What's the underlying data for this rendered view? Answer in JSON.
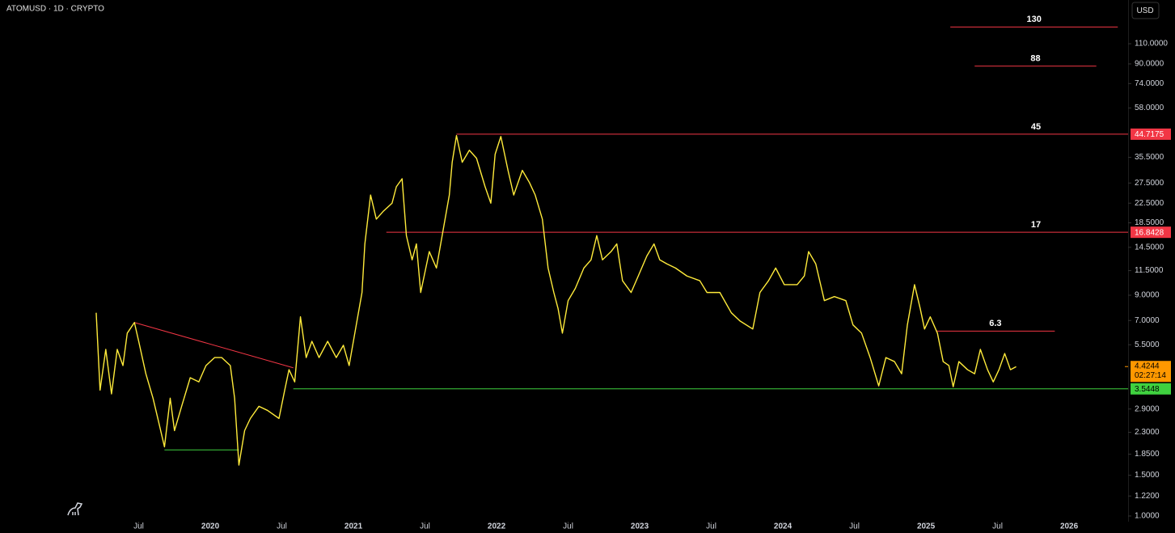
{
  "chart_data": {
    "type": "line",
    "title": "ATOMUSD · 1D · CRYPTO",
    "currency": "USD",
    "log_scale": true,
    "grid": false,
    "xlim": [
      2018.531,
      2026.412
    ],
    "ylim": [
      0.945,
      170
    ],
    "xticks": [
      {
        "value": 2019.5,
        "label": "Jul"
      },
      2020,
      {
        "value": 2020.5,
        "label": "Jul"
      },
      2021,
      {
        "value": 2021.5,
        "label": "Jul"
      },
      2022,
      {
        "value": 2022.5,
        "label": "Jul"
      },
      2023,
      {
        "value": 2023.5,
        "label": "Jul"
      },
      2024,
      {
        "value": 2024.5,
        "label": "Jul"
      },
      2025,
      {
        "value": 2025.5,
        "label": "Jul"
      },
      2026
    ],
    "yticks": [
      {
        "value": 1,
        "label": "1.0000"
      },
      {
        "value": 1.22,
        "label": "1.2200"
      },
      {
        "value": 1.5,
        "label": "1.5000"
      },
      {
        "value": 1.85,
        "label": "1.8500"
      },
      {
        "value": 2.3,
        "label": "2.3000"
      },
      {
        "value": 2.9,
        "label": "2.9000"
      },
      {
        "value": 5.5,
        "label": "5.5000"
      },
      {
        "value": 7,
        "label": "7.0000"
      },
      {
        "value": 9,
        "label": "9.0000"
      },
      {
        "value": 11.5,
        "label": "11.5000"
      },
      {
        "value": 14.5,
        "label": "14.5000"
      },
      {
        "value": 18.5,
        "label": "18.5000"
      },
      {
        "value": 22.5,
        "label": "22.5000"
      },
      {
        "value": 27.5,
        "label": "27.5000"
      },
      {
        "value": 35.5,
        "label": "35.5000"
      },
      {
        "value": 58,
        "label": "58.0000"
      },
      {
        "value": 74,
        "label": "74.0000"
      },
      {
        "value": 90,
        "label": "90.0000"
      },
      {
        "value": 110,
        "label": "110.0000"
      }
    ],
    "series": [
      {
        "name": "ATOMUSD",
        "color": "#ffeb3b",
        "x": [
          2019.203,
          2019.23,
          2019.27,
          2019.31,
          2019.35,
          2019.39,
          2019.42,
          2019.47,
          2019.5,
          2019.55,
          2019.6,
          2019.64,
          2019.68,
          2019.72,
          2019.75,
          2019.8,
          2019.86,
          2019.92,
          2019.97,
          2020.03,
          2020.08,
          2020.14,
          2020.17,
          2020.2,
          2020.24,
          2020.28,
          2020.34,
          2020.4,
          2020.48,
          2020.52,
          2020.55,
          2020.59,
          2020.63,
          2020.67,
          2020.71,
          2020.76,
          2020.82,
          2020.88,
          2020.93,
          2020.97,
          2021.02,
          2021.06,
          2021.08,
          2021.12,
          2021.16,
          2021.21,
          2021.27,
          2021.3,
          2021.34,
          2021.37,
          2021.41,
          2021.44,
          2021.47,
          2021.53,
          2021.58,
          2021.62,
          2021.67,
          2021.69,
          2021.72,
          2021.76,
          2021.81,
          2021.86,
          2021.92,
          2021.96,
          2021.99,
          2022.03,
          2022.08,
          2022.12,
          2022.18,
          2022.23,
          2022.27,
          2022.32,
          2022.36,
          2022.4,
          2022.43,
          2022.46,
          2022.5,
          2022.55,
          2022.61,
          2022.66,
          2022.7,
          2022.74,
          2022.8,
          2022.84,
          2022.88,
          2022.94,
          2022.99,
          2023.05,
          2023.1,
          2023.14,
          2023.19,
          2023.25,
          2023.33,
          2023.42,
          2023.47,
          2023.56,
          2023.64,
          2023.7,
          2023.79,
          2023.84,
          2023.9,
          2023.95,
          2024.01,
          2024.1,
          2024.15,
          2024.18,
          2024.23,
          2024.29,
          2024.36,
          2024.44,
          2024.49,
          2024.55,
          2024.61,
          2024.67,
          2024.72,
          2024.78,
          2024.83,
          2024.87,
          2024.92,
          2024.96,
          2024.99,
          2025.03,
          2025.08,
          2025.12,
          2025.16,
          2025.19,
          2025.23,
          2025.29,
          2025.34,
          2025.38,
          2025.43,
          2025.47,
          2025.51,
          2025.55,
          2025.59,
          2025.63
        ],
        "values": [
          7.56,
          3.5,
          5.25,
          3.37,
          5.25,
          4.47,
          6.17,
          6.86,
          5.69,
          4.12,
          3.23,
          2.54,
          1.99,
          3.23,
          2.34,
          2.98,
          3.96,
          3.8,
          4.47,
          4.84,
          4.84,
          4.47,
          3.23,
          1.66,
          2.34,
          2.64,
          2.98,
          2.86,
          2.64,
          3.5,
          4.29,
          3.8,
          7.26,
          4.84,
          5.69,
          4.84,
          5.69,
          4.84,
          5.47,
          4.47,
          6.7,
          9.25,
          15.0,
          24.4,
          19.2,
          20.8,
          22.5,
          26.5,
          28.7,
          16.3,
          12.8,
          15.0,
          9.25,
          13.9,
          11.8,
          16.3,
          24.4,
          33.8,
          44.1,
          33.8,
          38.1,
          35.2,
          26.5,
          22.5,
          36.6,
          43.7,
          31.2,
          24.4,
          31.2,
          27.6,
          24.4,
          19.2,
          11.8,
          9.25,
          7.87,
          6.17,
          8.53,
          9.63,
          11.8,
          12.8,
          16.3,
          12.8,
          13.9,
          15.0,
          10.4,
          9.25,
          10.9,
          13.3,
          15.0,
          12.8,
          12.3,
          11.8,
          10.9,
          10.4,
          9.25,
          9.25,
          7.56,
          6.97,
          6.43,
          9.25,
          10.4,
          11.8,
          10.0,
          10.0,
          10.9,
          13.9,
          12.3,
          8.53,
          8.88,
          8.53,
          6.7,
          6.17,
          4.84,
          3.65,
          4.84,
          4.65,
          4.12,
          6.7,
          10.0,
          7.87,
          6.43,
          7.26,
          6.17,
          4.65,
          4.47,
          3.62,
          4.65,
          4.29,
          4.12,
          5.25,
          4.29,
          3.8,
          4.29,
          5.04,
          4.29,
          4.42
        ]
      }
    ],
    "last_price": 4.4244,
    "countdown": "02:27:14",
    "last_price_color": "#ff9800",
    "levels": [
      {
        "value": 130,
        "label": "130",
        "color": "#f23645",
        "x_start": 2025.17,
        "x_end": 2026.34
      },
      {
        "value": 88,
        "label": "88",
        "color": "#f23645",
        "x_start": 2025.34,
        "x_end": 2026.19
      },
      {
        "value": 44.7175,
        "label": "45",
        "color": "#f23645",
        "x_start": 2021.72
      },
      {
        "value": 16.8428,
        "label": "17",
        "color": "#f23645",
        "x_start": 2021.23
      },
      {
        "value": 6.3,
        "label": "6.3",
        "color": "#f23645",
        "x_start": 2025.07,
        "x_end": 2025.9
      },
      {
        "value": 3.5448,
        "color": "#3fd13f",
        "x_start": 2020.58
      },
      {
        "value": 1.93,
        "color": "#3fd13f",
        "x_start": 2019.68,
        "x_end": 2020.2
      }
    ],
    "trendline": {
      "x": [
        2019.47,
        2020.58
      ],
      "values": [
        6.86,
        4.37
      ],
      "color": "#f23645"
    }
  }
}
